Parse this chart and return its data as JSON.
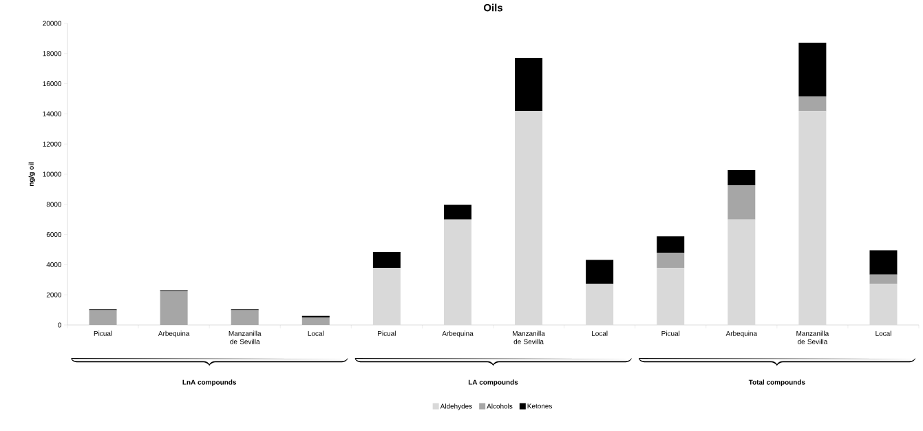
{
  "chart_data": {
    "type": "bar",
    "title": "Oils",
    "ylabel": "ng/g oil",
    "stacked": true,
    "legend": "bottom",
    "grid": false,
    "categories": [
      "Picual",
      "Arbequina",
      "Manzanilla de Sevilla",
      "Local",
      "Picual",
      "Arbequina",
      "Manzanilla de Sevilla",
      "Local",
      "Picual",
      "Arbequina",
      "Manzanilla de Sevilla",
      "Local"
    ],
    "series": [
      {
        "name": "Aldehydes",
        "color": "#d9d9d9",
        "values": [
          0,
          0,
          0,
          0,
          3780,
          7000,
          14190,
          2730,
          3780,
          7000,
          14190,
          2730
        ]
      },
      {
        "name": "Alcohols",
        "color": "#a6a6a6",
        "values": [
          980,
          2250,
          980,
          500,
          0,
          0,
          0,
          0,
          1000,
          2270,
          970,
          620
        ]
      },
      {
        "name": "Ketones",
        "color": "#000000",
        "values": [
          60,
          60,
          60,
          110,
          1060,
          970,
          3530,
          1590,
          1100,
          1000,
          3560,
          1610
        ]
      }
    ],
    "ylim": [
      0,
      20000
    ],
    "yticks": [
      0,
      2000,
      4000,
      6000,
      8000,
      10000,
      12000,
      14000,
      16000,
      18000,
      20000
    ],
    "annotations": [
      "LnA compounds",
      "LA compounds",
      "Total compounds"
    ]
  }
}
